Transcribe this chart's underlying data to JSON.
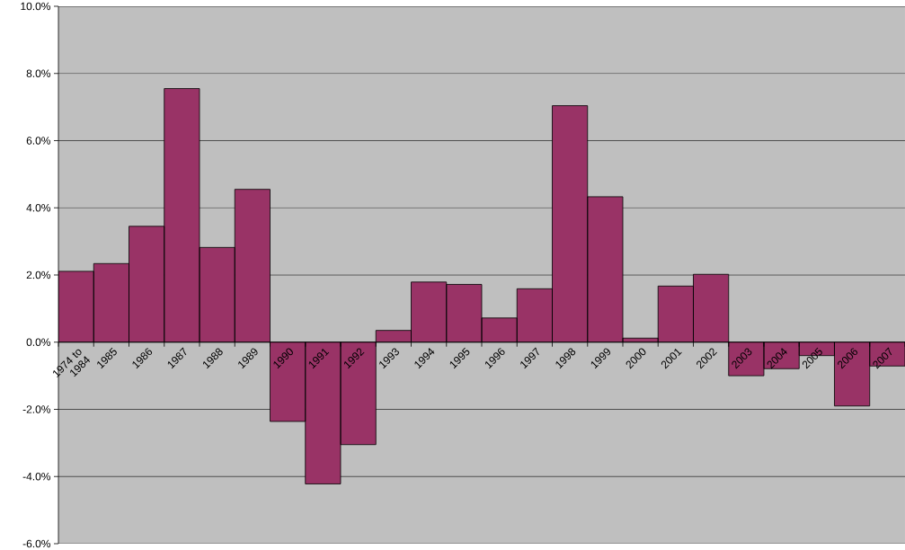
{
  "chart_data": {
    "type": "bar",
    "categories": [
      "1974 to 1984",
      "1985",
      "1986",
      "1987",
      "1988",
      "1989",
      "1990",
      "1991",
      "1992",
      "1993",
      "1994",
      "1995",
      "1996",
      "1997",
      "1998",
      "1999",
      "2000",
      "2001",
      "2002",
      "2003",
      "2004",
      "2005",
      "2006",
      "2007"
    ],
    "values": [
      2.11,
      2.34,
      3.45,
      7.55,
      2.82,
      4.55,
      -2.36,
      -4.22,
      -3.05,
      0.35,
      1.79,
      1.72,
      0.72,
      1.59,
      7.04,
      4.33,
      0.12,
      1.67,
      2.02,
      -1.0,
      -0.79,
      -0.4,
      -1.9,
      -0.71
    ],
    "color": "#993366",
    "ylim": [
      -6,
      10
    ],
    "yticks": [
      {
        "value": -6,
        "label": "-6.0%"
      },
      {
        "value": -4,
        "label": "-4.0%"
      },
      {
        "value": -2,
        "label": "-2.0%"
      },
      {
        "value": 0,
        "label": "0.0%"
      },
      {
        "value": 2,
        "label": "2.0%"
      },
      {
        "value": 4,
        "label": "4.0%"
      },
      {
        "value": 6,
        "label": "6.0%"
      },
      {
        "value": 8,
        "label": "8.0%"
      },
      {
        "value": 10,
        "label": "10.0%"
      }
    ],
    "grid": "y"
  }
}
